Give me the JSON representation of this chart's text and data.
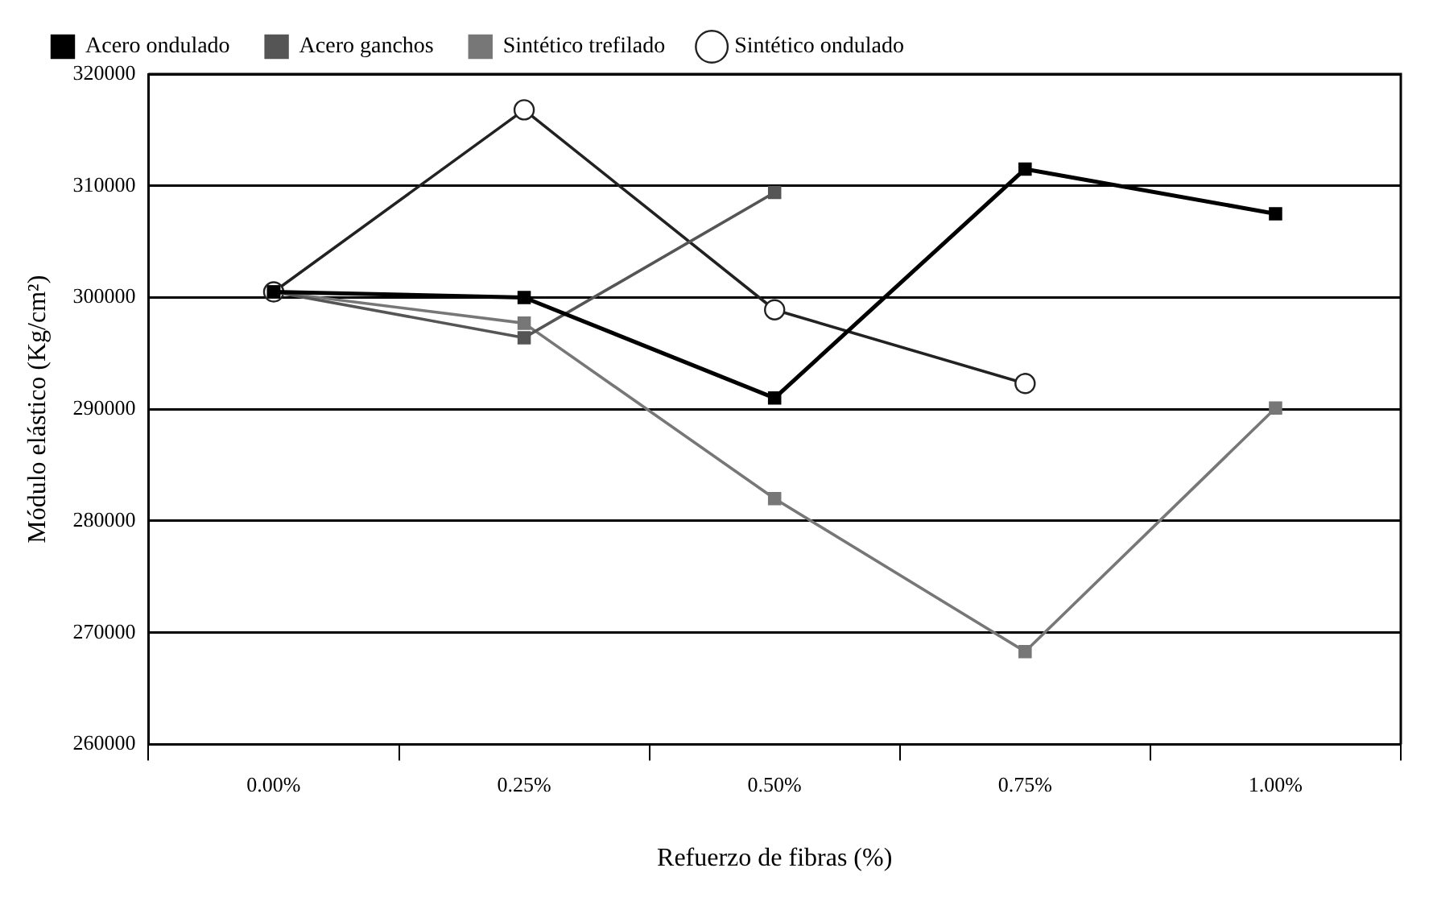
{
  "chart_data": {
    "type": "line",
    "xlabel": "Refuerzo de fibras (%)",
    "ylabel": "Módulo elástico (Kg/cm²)",
    "categories": [
      "0.00%",
      "0.25%",
      "0.50%",
      "0.75%",
      "1.00%"
    ],
    "series": [
      {
        "name": "Acero ondulado",
        "color": "#000000",
        "marker": "square",
        "values": [
          300500,
          300000,
          291000,
          311500,
          307500
        ]
      },
      {
        "name": "Acero ganchos",
        "color": "#555555",
        "marker": "square",
        "values": [
          300500,
          296400,
          309400,
          null,
          null
        ]
      },
      {
        "name": "Sintético trefilado",
        "color": "#777777",
        "marker": "square",
        "values": [
          300500,
          297700,
          282000,
          268300,
          290100
        ]
      },
      {
        "name": "Sintético ondulado",
        "color": "#222222",
        "marker": "circle",
        "values": [
          300500,
          316800,
          298900,
          292300,
          null
        ]
      }
    ],
    "ylim": [
      260000,
      320000
    ],
    "yticks": [
      260000,
      270000,
      280000,
      290000,
      300000,
      310000,
      320000
    ],
    "grid": "y",
    "legend": "top",
    "line_style": "solid"
  }
}
